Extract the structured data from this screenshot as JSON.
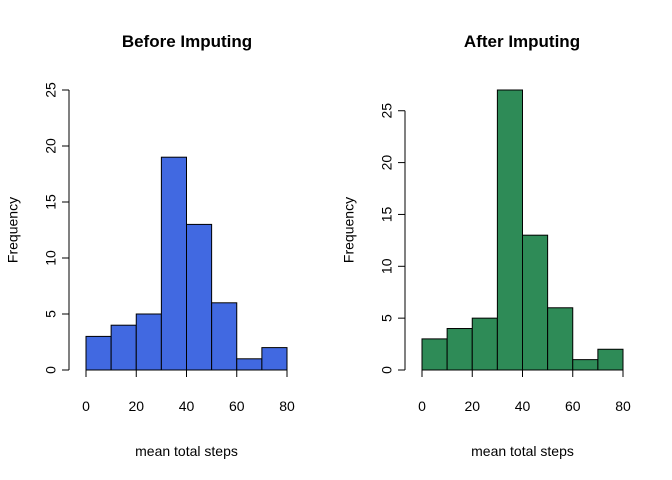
{
  "chart_data": [
    {
      "type": "bar",
      "title": "Before Imputing",
      "xlabel": "mean total steps",
      "ylabel": "Frequency",
      "color": "#4169E1",
      "bins": [
        [
          0,
          10
        ],
        [
          10,
          20
        ],
        [
          20,
          30
        ],
        [
          30,
          40
        ],
        [
          40,
          50
        ],
        [
          50,
          60
        ],
        [
          60,
          70
        ],
        [
          70,
          80
        ]
      ],
      "values": [
        3,
        4,
        5,
        19,
        13,
        6,
        1,
        2
      ],
      "xlim": [
        0,
        80
      ],
      "ylim": [
        0,
        25
      ],
      "xticks": [
        0,
        20,
        40,
        60,
        80
      ],
      "yticks": [
        0,
        5,
        10,
        15,
        20,
        25
      ],
      "grid": false
    },
    {
      "type": "bar",
      "title": "After Imputing",
      "xlabel": "mean total steps",
      "ylabel": "Frequency",
      "color": "#2E8B57",
      "bins": [
        [
          0,
          10
        ],
        [
          10,
          20
        ],
        [
          20,
          30
        ],
        [
          30,
          40
        ],
        [
          40,
          50
        ],
        [
          50,
          60
        ],
        [
          60,
          70
        ],
        [
          70,
          80
        ]
      ],
      "values": [
        3,
        4,
        5,
        27,
        13,
        6,
        1,
        2
      ],
      "xlim": [
        0,
        80
      ],
      "ylim": [
        0,
        27
      ],
      "xticks": [
        0,
        20,
        40,
        60,
        80
      ],
      "yticks": [
        0,
        5,
        10,
        15,
        20,
        25
      ],
      "grid": false
    }
  ]
}
